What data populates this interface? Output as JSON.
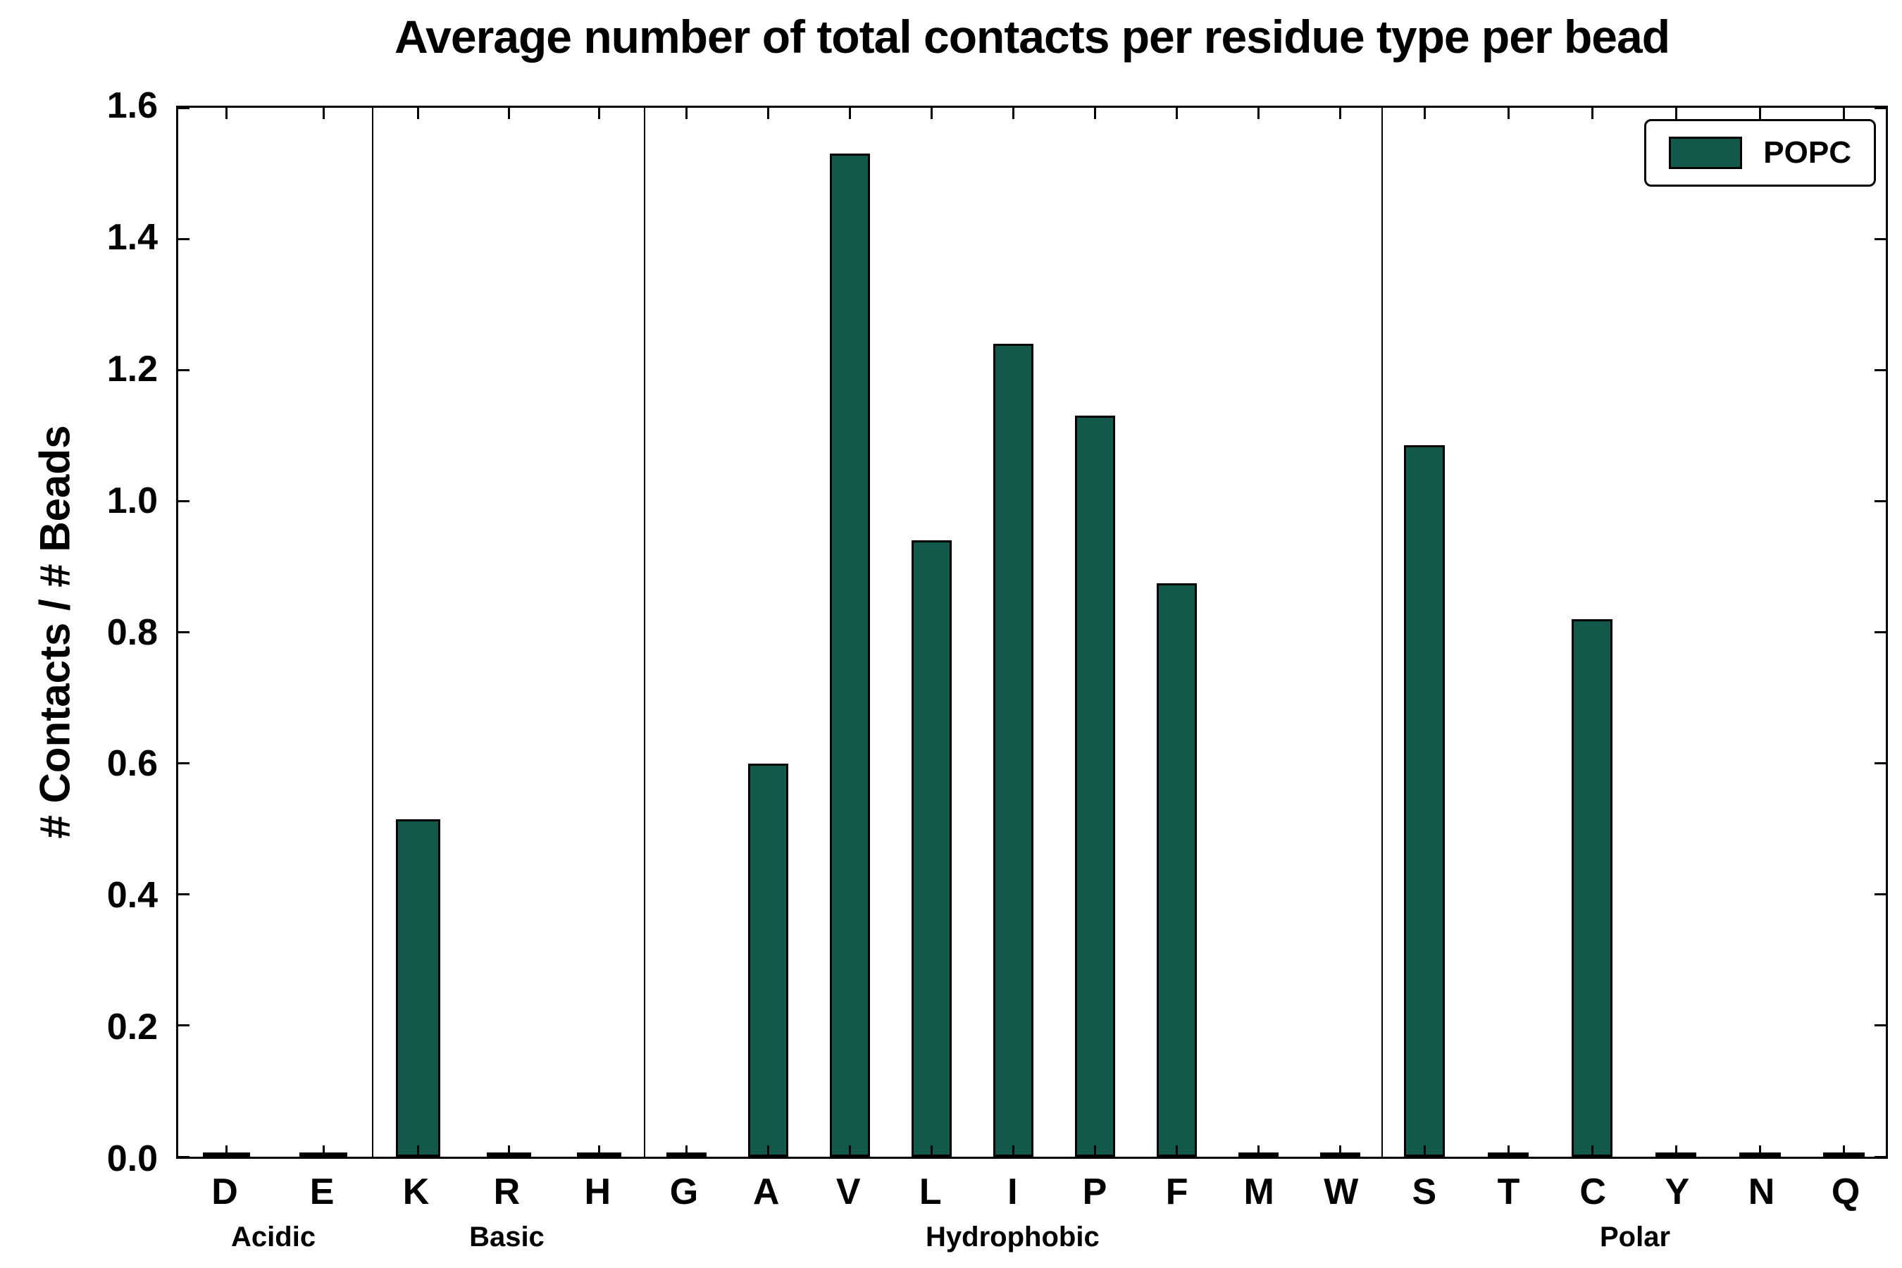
{
  "chart_data": {
    "type": "bar",
    "title": "Average number of total contacts per residue type per bead",
    "ylabel": "# Contacts / # Beads",
    "xlabel": "",
    "ylim": [
      0,
      1.6
    ],
    "ytick_labels": [
      "0.0",
      "0.2",
      "0.4",
      "0.6",
      "0.8",
      "1.0",
      "1.2",
      "1.4",
      "1.6"
    ],
    "grid": false,
    "bar_color": "#12594b",
    "bar_edge_color": "#000000",
    "legend": {
      "label": "POPC",
      "position": "upper right"
    },
    "groups": [
      {
        "name": "Acidic",
        "categories": [
          "D",
          "E"
        ],
        "values": [
          0.0,
          0.0
        ]
      },
      {
        "name": "Basic",
        "categories": [
          "K",
          "R",
          "H"
        ],
        "values": [
          0.515,
          0.0,
          0.0
        ]
      },
      {
        "name": "Hydrophobic",
        "categories": [
          "G",
          "A",
          "V",
          "L",
          "I",
          "P",
          "F",
          "M",
          "W"
        ],
        "values": [
          0.0,
          0.6,
          1.53,
          0.94,
          1.24,
          1.13,
          0.875,
          0.0,
          0.0
        ]
      },
      {
        "name": "Polar",
        "categories": [
          "S",
          "T",
          "C",
          "Y",
          "N",
          "Q"
        ],
        "values": [
          1.085,
          0.0,
          0.82,
          0.0,
          0.0,
          0.0
        ]
      }
    ]
  }
}
